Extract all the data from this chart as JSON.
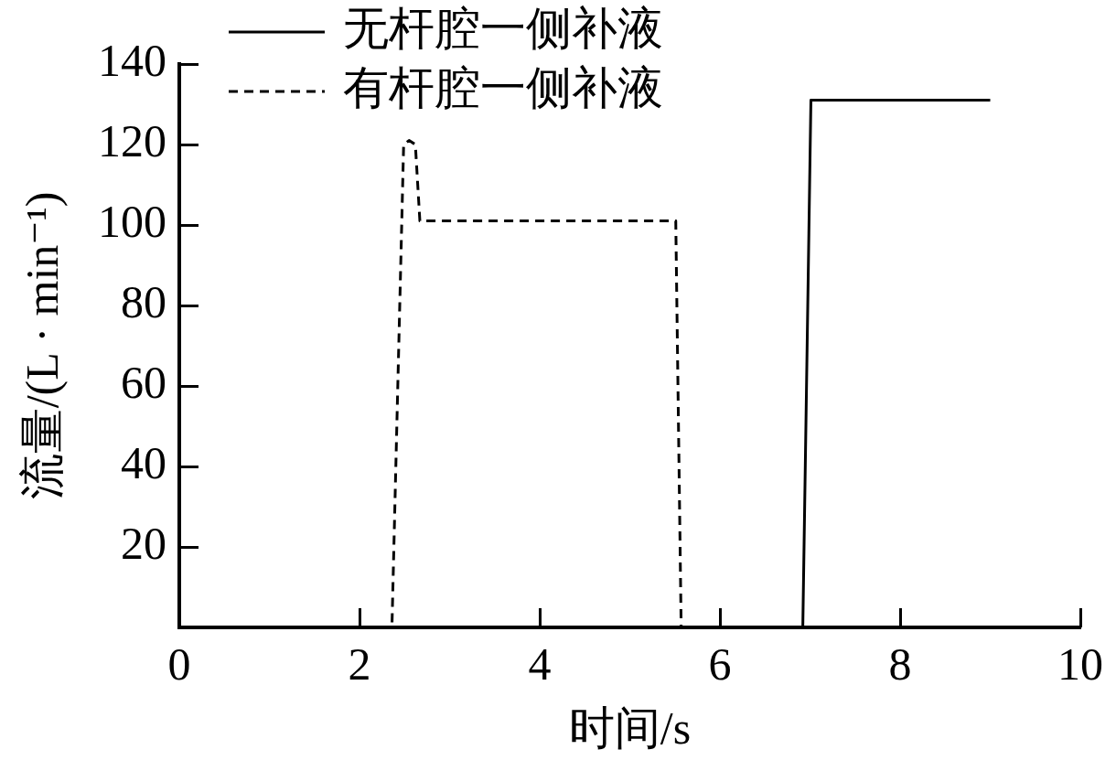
{
  "chart_data": {
    "type": "line",
    "xlabel": "时间/s",
    "ylabel": "流量/(L · min⁻¹)",
    "xlim": [
      0,
      10
    ],
    "ylim": [
      0,
      140
    ],
    "xticks": [
      0,
      2,
      4,
      6,
      8,
      10
    ],
    "yticks": [
      20,
      40,
      60,
      80,
      100,
      120,
      140
    ],
    "legend": "top left",
    "marker": "none",
    "series": [
      {
        "name": "无杆腔一侧补液",
        "color": "#000000",
        "line_style": "solid",
        "x": [
          0,
          6.92,
          7.01,
          9
        ],
        "values": [
          0,
          0,
          131,
          131
        ]
      },
      {
        "name": "有杆腔一侧补液",
        "color": "#000000",
        "line_style": "dashed",
        "x": [
          0,
          2.36,
          2.49,
          2.55,
          2.62,
          2.67,
          5.51,
          5.57,
          9
        ],
        "values": [
          0,
          0,
          120,
          121,
          120,
          101,
          101,
          0,
          0
        ]
      }
    ]
  }
}
